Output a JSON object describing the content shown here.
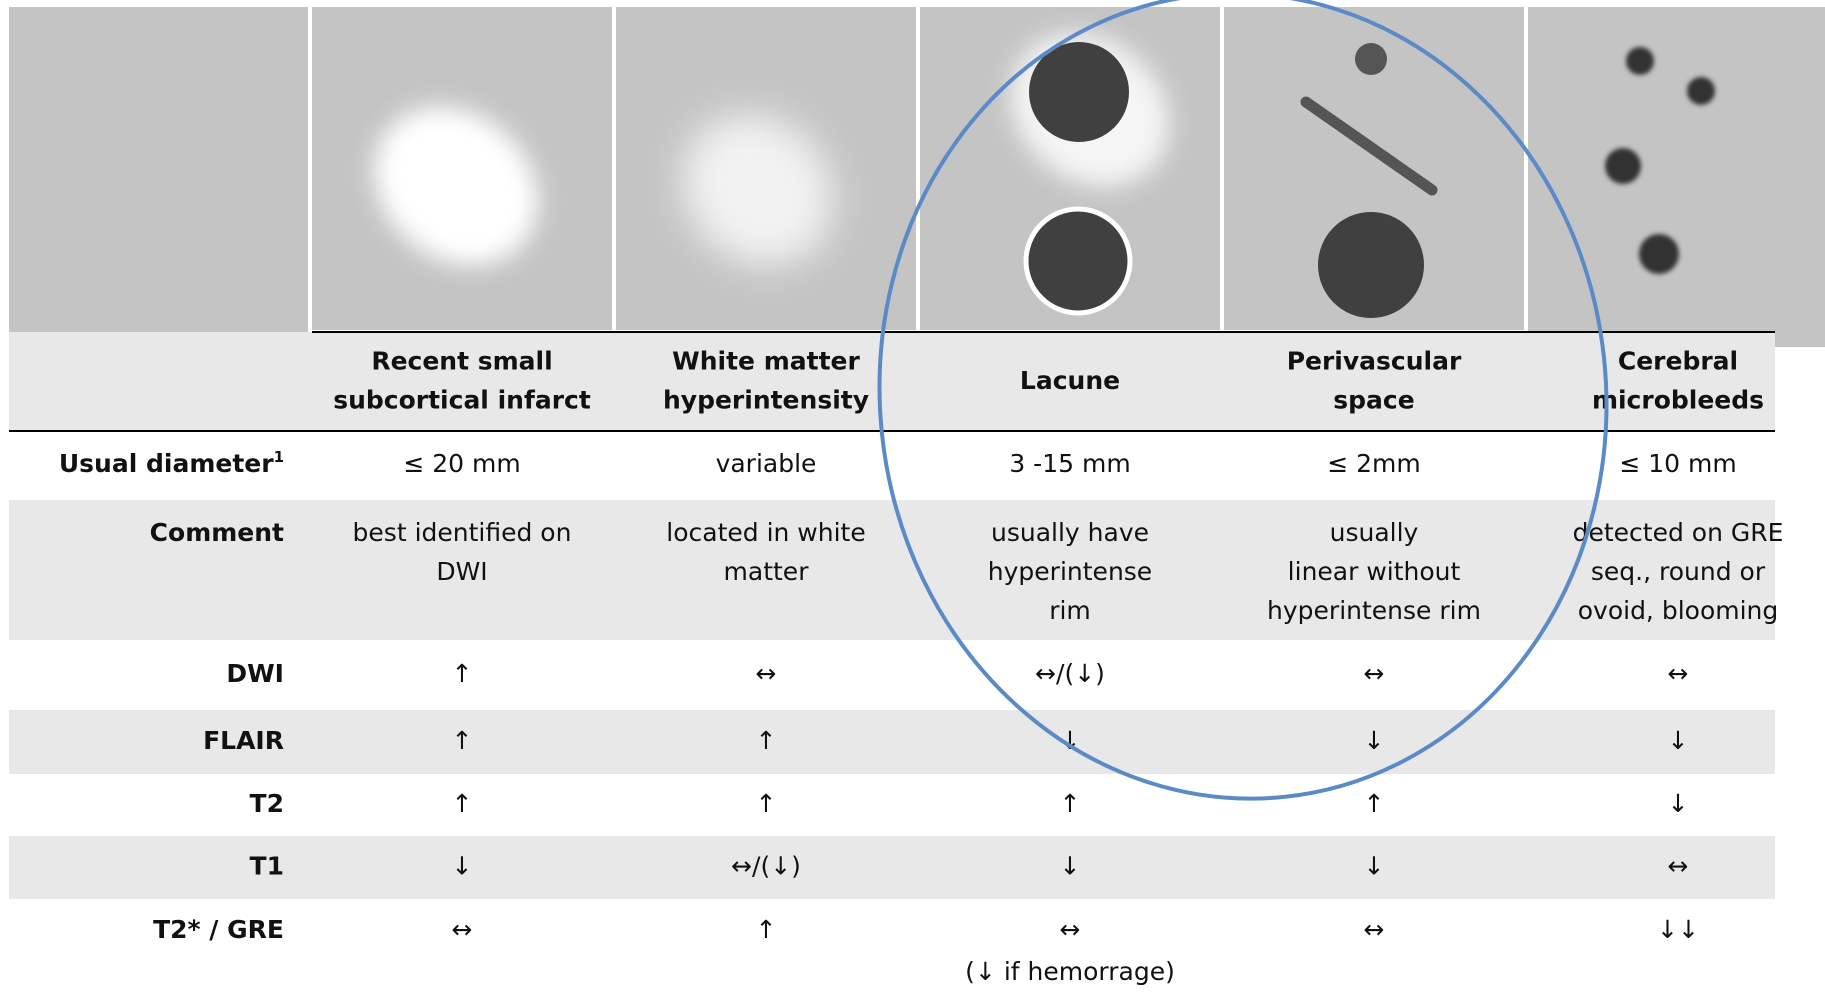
{
  "table": {
    "header": [
      [
        "Recent small",
        "subcortical infarct"
      ],
      [
        "White matter",
        "hyperintensity"
      ],
      [
        "Lacune"
      ],
      [
        "Perivascular",
        "space"
      ],
      [
        "Cerebral",
        "microbleeds"
      ]
    ],
    "rows": [
      {
        "label": "Usual diameter",
        "sup": "1",
        "cells": [
          [
            "≤ 20 mm"
          ],
          [
            "variable"
          ],
          [
            "3 -15 mm"
          ],
          [
            "≤ 2mm"
          ],
          [
            "≤ 10 mm"
          ]
        ]
      },
      {
        "label": "Comment",
        "cells": [
          [
            "best identified on",
            "DWI"
          ],
          [
            "located in white",
            "matter"
          ],
          [
            "usually have",
            "hyperintense",
            "rim"
          ],
          [
            "usually",
            "linear without",
            "hyperintense  rim"
          ],
          [
            "detected on GRE",
            "seq., round or",
            "ovoid, blooming"
          ]
        ]
      },
      {
        "label": "DWI",
        "cells": [
          [
            "↑"
          ],
          [
            "↔"
          ],
          [
            "↔/(↓)"
          ],
          [
            "↔"
          ],
          [
            "↔"
          ]
        ]
      },
      {
        "label": "FLAIR",
        "cells": [
          [
            "↑"
          ],
          [
            "↑"
          ],
          [
            "↓"
          ],
          [
            "↓"
          ],
          [
            "↓"
          ]
        ]
      },
      {
        "label": "T2",
        "cells": [
          [
            "↑"
          ],
          [
            "↑"
          ],
          [
            "↑"
          ],
          [
            "↑"
          ],
          [
            "↓"
          ]
        ]
      },
      {
        "label": "T1",
        "cells": [
          [
            "↓"
          ],
          [
            "↔/(↓)"
          ],
          [
            "↓"
          ],
          [
            "↓"
          ],
          [
            "↔"
          ]
        ]
      },
      {
        "label": "T2* / GRE",
        "cells": [
          [
            "↔"
          ],
          [
            "↑"
          ],
          [
            "↔",
            "(↓ if hemorrage)"
          ],
          [
            "↔"
          ],
          [
            "↓↓"
          ]
        ]
      }
    ]
  }
}
